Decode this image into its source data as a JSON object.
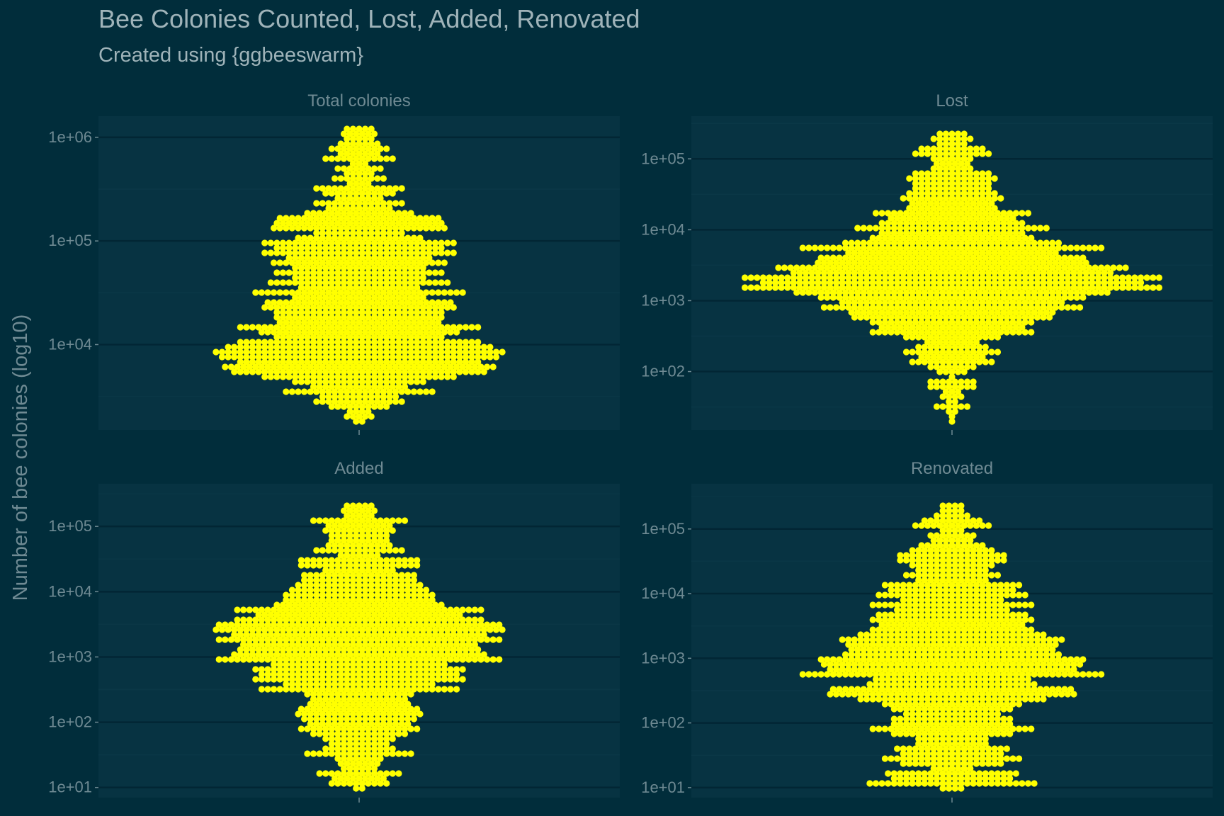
{
  "title": "Bee Colonies Counted, Lost, Added, Renovated",
  "subtitle": "Created using {ggbeeswarm}",
  "colors": {
    "background": "#012d3b",
    "panel": "#073342",
    "grid_major": "#022634",
    "grid_minor": "#0a3746",
    "point": "#ffff00",
    "text": "#6f8a93"
  },
  "chart_data": {
    "type": "scatter",
    "subtype": "beeswarm",
    "ylabel": "Number of bee colonies (log10)",
    "xlabel": "",
    "y_scale": "log10",
    "grid": true,
    "panels": [
      {
        "name": "Total colonies",
        "ylim": [
          1500,
          1600000
        ],
        "yticks": [
          10000,
          100000,
          1000000
        ],
        "ytick_labels": [
          "1e+04",
          "1e+05",
          "1e+06"
        ],
        "mode": 9000,
        "profile": [
          [
            1700,
            0.5
          ],
          [
            2500,
            2
          ],
          [
            4000,
            5
          ],
          [
            7500,
            12
          ],
          [
            12000,
            8
          ],
          [
            30000,
            7
          ],
          [
            60000,
            5.5
          ],
          [
            120000,
            6
          ],
          [
            300000,
            2
          ],
          [
            1300000,
            1
          ]
        ],
        "n_points": 1300
      },
      {
        "name": "Lost",
        "ylim": [
          15,
          400000
        ],
        "yticks": [
          100,
          1000,
          10000,
          100000
        ],
        "ytick_labels": [
          "1e+02",
          "1e+03",
          "1e+04",
          "1e+05"
        ],
        "mode": 2000,
        "profile": [
          [
            20,
            0.3
          ],
          [
            70,
            1
          ],
          [
            200,
            2.5
          ],
          [
            500,
            5
          ],
          [
            1000,
            7
          ],
          [
            2000,
            12
          ],
          [
            5000,
            7
          ],
          [
            10000,
            5
          ],
          [
            30000,
            3
          ],
          [
            100000,
            1.5
          ],
          [
            250000,
            0.8
          ]
        ],
        "n_points": 1300
      },
      {
        "name": "Added",
        "ylim": [
          7,
          450000
        ],
        "yticks": [
          10,
          100,
          1000,
          10000,
          100000
        ],
        "ytick_labels": [
          "1e+01",
          "1e+02",
          "1e+03",
          "1e+04",
          "1e+05"
        ],
        "mode": 3000,
        "profile": [
          [
            10,
            2
          ],
          [
            30,
            3
          ],
          [
            100,
            4
          ],
          [
            300,
            6
          ],
          [
            1000,
            9
          ],
          [
            3000,
            11
          ],
          [
            10000,
            6
          ],
          [
            30000,
            4
          ],
          [
            100000,
            2.5
          ],
          [
            250000,
            1
          ]
        ],
        "n_points": 1250
      },
      {
        "name": "Renovated",
        "ylim": [
          7,
          500000
        ],
        "yticks": [
          10,
          100,
          1000,
          10000,
          100000
        ],
        "ytick_labels": [
          "1e+01",
          "1e+02",
          "1e+03",
          "1e+04",
          "1e+05"
        ],
        "mode": 700,
        "profile": [
          [
            10,
            5
          ],
          [
            30,
            5
          ],
          [
            100,
            6
          ],
          [
            300,
            8
          ],
          [
            700,
            12
          ],
          [
            2000,
            9
          ],
          [
            5000,
            7
          ],
          [
            20000,
            5
          ],
          [
            60000,
            3
          ],
          [
            250000,
            1
          ]
        ],
        "n_points": 1250
      }
    ]
  }
}
